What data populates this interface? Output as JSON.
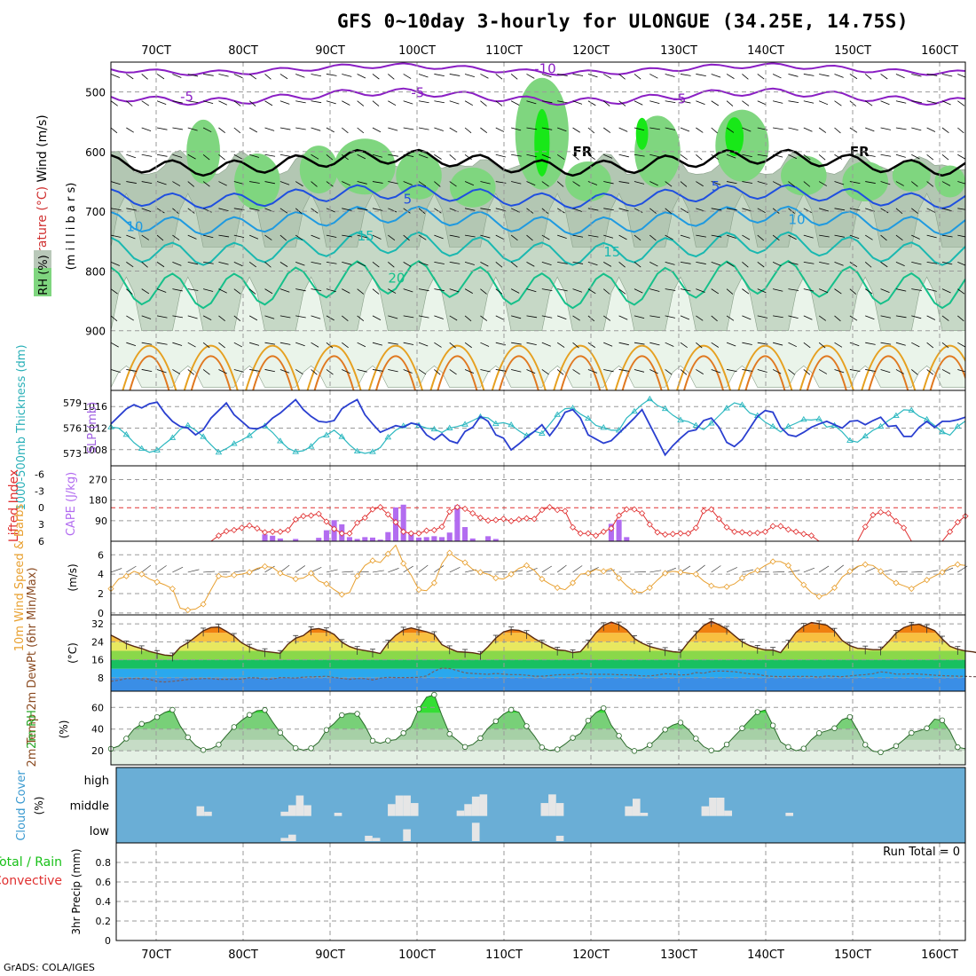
{
  "title": "GFS 0~10day 3-hourly for ULONGUE (34.25E, 14.75S)",
  "footer": "GrADS: COLA/IGES",
  "colors": {
    "cloud_bg": "#6aaed6",
    "cloud_block": "#e6e6e6",
    "rh_mid": "#b9c8b9",
    "rh_green": "#7fd67f",
    "rh_bright": "#18e818",
    "thickness": "#2a3fd0",
    "slp": "#2cb8c0",
    "lifted": "#e03030",
    "cape": "#b26cf0",
    "wind": "#e8a030"
  },
  "chart_data": [
    {
      "id": "upper_air",
      "type": "contour",
      "ylabels": [
        "Temperature (°C)",
        "Wind (m/s)",
        "RH (%)",
        "(m i l l i b a r s)"
      ],
      "yticks": [
        500,
        600,
        700,
        800,
        900
      ],
      "ylim": [
        1000,
        450
      ],
      "isotherms": [
        {
          "label": "-10",
          "color": "#8a1ec4"
        },
        {
          "label": "-5",
          "color": "#8a1ec4"
        },
        {
          "label": "FR",
          "color": "#000000"
        },
        {
          "label": "5",
          "color": "#1f4fe0"
        },
        {
          "label": "10",
          "color": "#1f9ae0"
        },
        {
          "label": "15",
          "color": "#1ab8b0"
        },
        {
          "label": "20",
          "color": "#16c08a"
        }
      ]
    },
    {
      "id": "thickness_slp",
      "type": "line",
      "left_label": "1000-500mb Thickness (dm)",
      "right_label": "SLP (mb)",
      "left_ticks": [
        573,
        576,
        579
      ],
      "left_lim": [
        571.5,
        580.5
      ],
      "right_ticks": [
        1008,
        1012,
        1016
      ],
      "right_lim": [
        1005,
        1019
      ],
      "thickness": [
        576.5,
        577.4,
        578.3,
        578.8,
        578.4,
        578.9,
        579.1,
        577.8,
        576.8,
        576.2,
        576.0,
        575.2,
        575.8,
        577.2,
        578.1,
        579.0,
        577.6,
        576.8,
        576.0,
        575.9,
        576.3,
        577.2,
        577.8,
        578.6,
        579.4,
        578.2,
        577.4,
        576.8,
        576.7,
        576.9,
        578.3,
        578.9,
        579.4,
        577.6,
        576.5,
        575.5,
        575.9,
        576.3,
        576.1,
        576.6,
        576.4,
        575.2,
        574.6,
        575.3,
        574.5,
        574.2,
        575.6,
        576.1,
        577.4,
        576.8,
        575.2,
        574.8,
        573.4,
        574.1,
        574.9,
        575.6,
        576.4,
        575.1,
        576.3,
        577.9,
        578.2,
        577.2,
        575.2,
        574.7,
        574.2,
        574.5,
        575.4,
        576.3,
        577.2,
        578.2,
        576.4,
        574.6,
        572.8,
        573.9,
        574.8,
        575.6,
        575.8,
        576.9,
        577.2,
        576.1,
        574.3,
        573.8,
        574.6,
        576.0,
        577.4,
        578.1,
        577.9,
        576.1,
        575.2,
        575.0,
        575.5,
        576.1,
        576.5,
        576.8,
        576.4,
        576.0,
        576.8,
        576.9,
        576.4,
        576.9,
        577.3,
        576.2,
        576.3,
        575.0,
        575.0,
        576.1,
        576.8,
        576.1,
        576.8,
        576.8,
        577.0,
        577.3
      ],
      "slp": [
        1012.2,
        1012.0,
        1010.8,
        1009.3,
        1008.2,
        1007.5,
        1007.9,
        1009.1,
        1010.2,
        1011.8,
        1012.5,
        1011.6,
        1010.4,
        1008.9,
        1007.5,
        1008.2,
        1009.1,
        1009.8,
        1010.6,
        1011.8,
        1012.4,
        1011.2,
        1009.6,
        1008.3,
        1007.6,
        1007.8,
        1008.6,
        1010.1,
        1010.7,
        1011.6,
        1010.4,
        1008.9,
        1007.7,
        1007.3,
        1007.6,
        1008.4,
        1010.3,
        1011.6,
        1012.4,
        1012.9,
        1012.5,
        1012.0,
        1011.8,
        1011.2,
        1012.0,
        1012.3,
        1012.7,
        1013.4,
        1014.1,
        1013.9,
        1012.8,
        1013.0,
        1012.6,
        1011.5,
        1010.6,
        1011.4,
        1011.0,
        1012.7,
        1014.5,
        1015.6,
        1015.7,
        1014.6,
        1013.8,
        1012.5,
        1012.1,
        1011.6,
        1011.6,
        1013.9,
        1015.1,
        1016.4,
        1017.4,
        1016.2,
        1015.6,
        1014.4,
        1013.5,
        1013.2,
        1012.5,
        1011.7,
        1012.9,
        1014.3,
        1015.7,
        1016.7,
        1016.3,
        1014.8,
        1014.3,
        1013.1,
        1012.3,
        1011.3,
        1012.3,
        1012.9,
        1013.6,
        1013.5,
        1013.7,
        1012.2,
        1012.5,
        1011.3,
        1009.7,
        1009.4,
        1010.5,
        1011.6,
        1012.3,
        1013.4,
        1014.3,
        1015.4,
        1015.3,
        1014.2,
        1013.6,
        1012.5,
        1011.3,
        1010.7,
        1012.3,
        1013.3
      ]
    },
    {
      "id": "cape_lifted",
      "type": "bar+line",
      "left_label": "Lifted Index",
      "right_label": "CAPE (J/kg)",
      "left_ticks": [
        -6,
        -3,
        0,
        3,
        6
      ],
      "left_lim": [
        6,
        -7.5
      ],
      "right_ticks": [
        90,
        180,
        270
      ],
      "right_lim": [
        0,
        330
      ],
      "lifted_index": [
        6,
        6,
        6,
        6,
        6,
        6,
        6,
        6,
        6,
        6,
        6,
        6,
        6,
        6,
        5.0,
        4.2,
        4.0,
        3.6,
        3.2,
        3.7,
        4.4,
        4.3,
        4.3,
        4.0,
        2.1,
        1.5,
        1.4,
        1.1,
        2.5,
        3.8,
        4.6,
        4.6,
        2.7,
        1.8,
        0.3,
        -0.1,
        1.2,
        2.6,
        4.3,
        4.6,
        4.6,
        4.1,
        4.0,
        3.4,
        0.7,
        -0.1,
        0.2,
        1.0,
        1.8,
        2.3,
        2.2,
        2.0,
        2.4,
        2.1,
        1.9,
        2.0,
        0.4,
        -0.1,
        0.4,
        0.6,
        3.5,
        4.6,
        4.6,
        5.0,
        4.3,
        3.7,
        1.4,
        0.3,
        0.3,
        1.0,
        3.0,
        4.4,
        4.8,
        4.7,
        4.6,
        4.6,
        3.6,
        0.6,
        0.3,
        2.0,
        3.5,
        4.3,
        4.4,
        4.6,
        4.5,
        4.3,
        3.3,
        3.3,
        3.9,
        4.3,
        4.7,
        5.0,
        6,
        6,
        6,
        6,
        6,
        6,
        3.4,
        1.3,
        0.8,
        1.0,
        2.4,
        3.6,
        6,
        6,
        6,
        6,
        6,
        4.3,
        2.6,
        1.5
      ],
      "cape": [
        0,
        0,
        0,
        0,
        0,
        0,
        0,
        0,
        0,
        0,
        0,
        0,
        0,
        0,
        0,
        0,
        0,
        0,
        0,
        0,
        30,
        24,
        12,
        0,
        10,
        0,
        0,
        15,
        48,
        92,
        74,
        18,
        10,
        18,
        16,
        7,
        40,
        148,
        160,
        40,
        16,
        18,
        22,
        18,
        38,
        158,
        62,
        12,
        0,
        22,
        10,
        0,
        0,
        0,
        0,
        0,
        0,
        0,
        0,
        0,
        0,
        0,
        0,
        0,
        0,
        76,
        94,
        18,
        0,
        0,
        0,
        0,
        0,
        0,
        0,
        0,
        0,
        0,
        0,
        0,
        0,
        0,
        0,
        0,
        0,
        0,
        0,
        0,
        0,
        0,
        0,
        0,
        0,
        0,
        0,
        0,
        0,
        0,
        0,
        0,
        0,
        0,
        0,
        0,
        0,
        0,
        0,
        0,
        0,
        0,
        0,
        0
      ]
    },
    {
      "id": "wind10m",
      "type": "line",
      "left_label": "10m Wind Speed & Barbs",
      "unit": "(m/s)",
      "ticks": [
        0,
        2,
        4,
        6
      ],
      "ylim": [
        -0.2,
        7.4
      ],
      "speed": [
        2.5,
        3.5,
        3.8,
        4.3,
        4.0,
        3.5,
        3.2,
        2.9,
        2.5,
        0.5,
        0.3,
        0.4,
        0.9,
        2.4,
        3.8,
        3.7,
        3.9,
        4.0,
        4.2,
        4.6,
        4.8,
        4.7,
        4.1,
        3.8,
        3.5,
        3.6,
        4.1,
        3.3,
        3.0,
        2.4,
        1.9,
        2.1,
        3.8,
        4.9,
        5.4,
        5.2,
        6.1,
        7.0,
        5.1,
        3.9,
        2.4,
        2.3,
        3.1,
        5.1,
        6.2,
        5.6,
        5.2,
        4.5,
        4.2,
        4.0,
        3.6,
        3.5,
        4.0,
        4.6,
        4.9,
        4.4,
        3.5,
        3.0,
        2.6,
        2.4,
        3.1,
        4.0,
        4.1,
        4.5,
        4.3,
        4.6,
        3.6,
        2.8,
        2.2,
        2.1,
        2.6,
        3.4,
        4.1,
        4.3,
        4.2,
        4.1,
        4.0,
        3.3,
        2.8,
        2.6,
        2.7,
        3.0,
        3.6,
        4.1,
        4.4,
        4.9,
        5.3,
        5.3,
        4.9,
        3.7,
        2.9,
        2.1,
        1.7,
        1.9,
        2.6,
        3.7,
        4.3,
        4.8,
        5.0,
        4.9,
        4.3,
        3.6,
        3.1,
        2.8,
        2.5,
        3.0,
        3.4,
        3.8,
        4.2,
        4.8,
        5.0,
        4.9
      ]
    },
    {
      "id": "temp2m",
      "type": "area",
      "left_label": "2m Temp 2m DewPt (6hr Min/Max)",
      "unit": "(°C)",
      "ticks": [
        8,
        16,
        24,
        32
      ],
      "ylim": [
        2,
        36
      ],
      "temp": [
        27.0,
        25.2,
        23.2,
        22.0,
        21.0,
        19.7,
        18.9,
        18.1,
        17.8,
        21.6,
        23.6,
        26.2,
        28.9,
        30.4,
        30.6,
        28.7,
        26.5,
        23.5,
        21.7,
        20.3,
        19.7,
        19.3,
        18.9,
        22.9,
        25.6,
        26.8,
        29.5,
        29.9,
        29.0,
        27.3,
        23.8,
        21.9,
        20.7,
        20.1,
        19.5,
        18.8,
        23.5,
        26.9,
        29.3,
        30.2,
        29.3,
        28.5,
        27.3,
        22.7,
        21.0,
        19.6,
        19.4,
        19.1,
        18.5,
        21.8,
        25.7,
        28.4,
        29.4,
        29.1,
        27.8,
        25.5,
        23.6,
        21.8,
        20.4,
        20.1,
        19.2,
        19.6,
        23.6,
        28.0,
        31.3,
        32.8,
        31.6,
        29.3,
        25.5,
        23.4,
        21.9,
        21.0,
        20.2,
        19.6,
        19.3,
        23.8,
        27.6,
        31.2,
        33.1,
        31.6,
        29.7,
        26.8,
        24.0,
        22.3,
        21.2,
        20.4,
        20.3,
        19.2,
        23.5,
        28.2,
        31.0,
        32.6,
        32.1,
        31.4,
        28.8,
        24.6,
        22.3,
        21.1,
        20.9,
        20.5,
        20.5,
        24.0,
        27.9,
        30.3,
        31.5,
        31.8,
        30.4,
        29.0,
        25.3,
        22.0,
        20.7,
        19.9,
        19.5,
        18.8,
        27.0
      ],
      "dewpoint": [
        6.4,
        6.9,
        7.6,
        7.6,
        7.6,
        7.3,
        6.3,
        6.1,
        6.4,
        6.8,
        7.2,
        7.4,
        7.6,
        7.6,
        7.3,
        7.3,
        7.3,
        7.4,
        8.0,
        7.9,
        7.3,
        7.4,
        8.1,
        8.0,
        7.8,
        8.3,
        8.4,
        8.5,
        8.7,
        8.1,
        7.7,
        7.3,
        7.6,
        7.6,
        7.0,
        7.8,
        8.2,
        8.1,
        8.1,
        8.1,
        8.2,
        8.8,
        10.9,
        12.3,
        12.1,
        11.2,
        10.2,
        9.9,
        9.7,
        9.5,
        9.9,
        9.6,
        9.4,
        9.4,
        9.1,
        8.7,
        8.7,
        8.9,
        9.3,
        9.4,
        9.4,
        9.9,
        9.5,
        9.5,
        9.5,
        9.5,
        9.3,
        9.3,
        9.1,
        8.8,
        8.8,
        9.2,
        9.8,
        9.6,
        9.2,
        9.4,
        10.3,
        10.0,
        10.8,
        11.0,
        10.9,
        10.7,
        10.2,
        9.7,
        9.5,
        8.8,
        8.6,
        8.5,
        8.6,
        8.6,
        8.6,
        8.6,
        8.3,
        8.8,
        8.6,
        8.5,
        8.8,
        9.1,
        9.4,
        9.8,
        10.6,
        10.3,
        9.6,
        9.6,
        9.8,
        9.6,
        9.4,
        9.1,
        8.9,
        8.8,
        8.7,
        8.6,
        8.5,
        8.5
      ],
      "bands": [
        {
          "low": 2,
          "high": 8,
          "color": "#3a8ee6"
        },
        {
          "low": 8,
          "high": 12,
          "color": "#2aa8ee"
        },
        {
          "low": 12,
          "high": 16,
          "color": "#18c060"
        },
        {
          "low": 16,
          "high": 20,
          "color": "#8ad84a"
        },
        {
          "low": 20,
          "high": 24,
          "color": "#e8e860"
        },
        {
          "low": 24,
          "high": 28,
          "color": "#f8c040"
        },
        {
          "low": 28,
          "high": 32,
          "color": "#f08010"
        },
        {
          "low": 32,
          "high": 36,
          "color": "#e04010"
        }
      ]
    },
    {
      "id": "rh2m",
      "type": "area",
      "left_label": "2m RH",
      "unit": "(%)",
      "ticks": [
        20,
        40,
        60
      ],
      "ylim": [
        7,
        75
      ],
      "rh": [
        21.8,
        24.3,
        31.2,
        40.1,
        44.8,
        46.4,
        51.1,
        55.3,
        57.8,
        42.9,
        32.4,
        24.8,
        20.7,
        21.8,
        25.6,
        33.9,
        41.9,
        48.1,
        53.1,
        57.0,
        57.6,
        46.7,
        36.7,
        28.9,
        22.5,
        20.7,
        22.3,
        27.9,
        39.2,
        45.2,
        52.9,
        54.6,
        54.1,
        43.2,
        29.2,
        26.9,
        29.4,
        30.3,
        36.3,
        42.5,
        58.5,
        69.4,
        71.7,
        52.5,
        35.5,
        29.8,
        23.5,
        25.8,
        31.6,
        40.8,
        47.3,
        53.8,
        57.8,
        55.5,
        42.7,
        33.7,
        23.1,
        20.3,
        21.3,
        26.2,
        31.9,
        36.1,
        47.8,
        55.2,
        59.3,
        43.6,
        33.8,
        24.0,
        19.8,
        21.0,
        25.3,
        31.6,
        39.5,
        43.7,
        46.0,
        39.7,
        31.2,
        23.9,
        20.3,
        19.5,
        25.8,
        33.4,
        40.8,
        48.4,
        55.7,
        57.6,
        43.3,
        28.3,
        23.5,
        20.0,
        22.0,
        30.3,
        36.3,
        38.4,
        40.8,
        48.7,
        51.2,
        38.9,
        25.5,
        19.6,
        18.6,
        20.9,
        24.4,
        30.1,
        36.5,
        38.5,
        40.8,
        49.2,
        48.1,
        37.9,
        23.3,
        21.8
      ],
      "bands": [
        "#e4f0e4",
        "#c6dcc6",
        "#a6d0a6",
        "#78d078",
        "#34de34"
      ]
    },
    {
      "id": "cloud",
      "type": "blocks",
      "left_label": "Cloud Cover",
      "unit": "(%)",
      "levels": [
        "high",
        "middle",
        "low"
      ],
      "blocks": [
        {
          "level": "middle",
          "t": 11,
          "frac": 0.45
        },
        {
          "level": "middle",
          "t": 12,
          "frac": 0.2
        },
        {
          "level": "middle",
          "t": 22,
          "frac": 0.2
        },
        {
          "level": "middle",
          "t": 23,
          "frac": 0.5
        },
        {
          "level": "middle",
          "t": 24,
          "frac": 0.95
        },
        {
          "level": "middle",
          "t": 25,
          "frac": 0.5
        },
        {
          "level": "middle",
          "t": 29,
          "frac": 0.15
        },
        {
          "level": "middle",
          "t": 36,
          "frac": 0.55
        },
        {
          "level": "middle",
          "t": 37,
          "frac": 0.95
        },
        {
          "level": "middle",
          "t": 38,
          "frac": 0.95
        },
        {
          "level": "middle",
          "t": 39,
          "frac": 0.6
        },
        {
          "level": "middle",
          "t": 45,
          "frac": 0.25
        },
        {
          "level": "middle",
          "t": 46,
          "frac": 0.55
        },
        {
          "level": "middle",
          "t": 47,
          "frac": 0.9
        },
        {
          "level": "middle",
          "t": 48,
          "frac": 1.0
        },
        {
          "level": "middle",
          "t": 56,
          "frac": 0.6
        },
        {
          "level": "middle",
          "t": 57,
          "frac": 1.0
        },
        {
          "level": "middle",
          "t": 58,
          "frac": 0.6
        },
        {
          "level": "middle",
          "t": 67,
          "frac": 0.45
        },
        {
          "level": "middle",
          "t": 68,
          "frac": 0.8
        },
        {
          "level": "middle",
          "t": 69,
          "frac": 0.15
        },
        {
          "level": "middle",
          "t": 77,
          "frac": 0.45
        },
        {
          "level": "middle",
          "t": 78,
          "frac": 0.85
        },
        {
          "level": "middle",
          "t": 79,
          "frac": 0.85
        },
        {
          "level": "middle",
          "t": 80,
          "frac": 0.25
        },
        {
          "level": "middle",
          "t": 88,
          "frac": 0.15
        },
        {
          "level": "low",
          "t": 22,
          "frac": 0.15
        },
        {
          "level": "low",
          "t": 23,
          "frac": 0.3
        },
        {
          "level": "low",
          "t": 33,
          "frac": 0.25
        },
        {
          "level": "low",
          "t": 34,
          "frac": 0.15
        },
        {
          "level": "low",
          "t": 38,
          "frac": 0.55
        },
        {
          "level": "low",
          "t": 47,
          "frac": 0.85
        },
        {
          "level": "low",
          "t": 58,
          "frac": 0.25
        }
      ]
    },
    {
      "id": "precip",
      "type": "bar",
      "left_label": "Total / Rain Convective",
      "label_total": "Total / Rain",
      "label_conv": "Convective",
      "ylabel": "3hr Precip (mm)",
      "ticks": [
        0,
        0.2,
        0.4,
        0.6,
        0.8
      ],
      "ylim": [
        0,
        1.0
      ],
      "run_total": "Run Total = 0",
      "values": []
    }
  ],
  "x_axis": {
    "labels": [
      "70CT",
      "80CT",
      "90CT",
      "100CT",
      "110CT",
      "120CT",
      "130CT",
      "140CT",
      "150CT",
      "160CT"
    ]
  }
}
